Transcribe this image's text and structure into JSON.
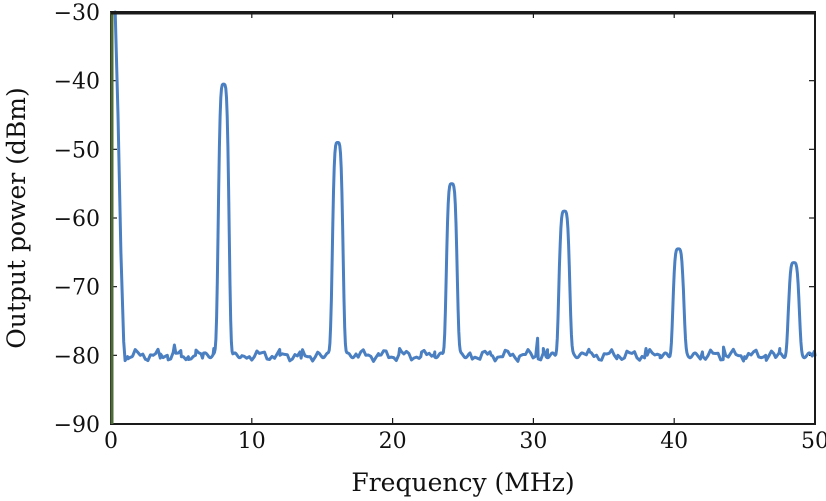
{
  "chart_data": {
    "type": "line",
    "title": "",
    "xlabel": "Frequency (MHz)",
    "ylabel": "Output power (dBm)",
    "xlim": [
      0,
      50
    ],
    "ylim": [
      -90,
      -30
    ],
    "x_ticks": [
      0,
      10,
      20,
      30,
      40,
      50
    ],
    "x_tick_labels": [
      "0",
      "10",
      "20",
      "30",
      "40",
      "50"
    ],
    "y_ticks": [
      -90,
      -80,
      -70,
      -60,
      -50,
      -40,
      -30
    ],
    "y_tick_labels": [
      "−90",
      "−80",
      "−70",
      "−60",
      "−50",
      "−40",
      "−30"
    ],
    "grid": false,
    "noise_floor": -80,
    "series": [
      {
        "color": "#4a7fc1",
        "peaks": [
          {
            "x": 8.0,
            "y": -40.5
          },
          {
            "x": 16.1,
            "y": -49
          },
          {
            "x": 24.2,
            "y": -55
          },
          {
            "x": 32.2,
            "y": -59
          },
          {
            "x": 40.3,
            "y": -64.5
          },
          {
            "x": 48.5,
            "y": -66.5
          }
        ],
        "x": [
          0.3,
          0.5,
          0.7,
          0.9,
          1.2,
          1.5,
          2.0,
          2.5,
          3.0,
          3.5,
          4.0,
          4.5,
          5.0,
          5.5,
          6.0,
          6.5,
          7.0,
          7.3,
          12.0,
          13.5,
          15.0,
          19.0,
          20.5,
          22.0,
          23.0,
          27.0,
          29.0,
          30.3,
          30.7,
          31.0,
          34.0,
          36.0,
          38.0,
          39.0,
          42.0,
          43.5,
          45.0,
          46.5,
          47.5,
          50.0
        ],
        "y": [
          -30,
          -45,
          -65,
          -78,
          -80.5,
          -80.2,
          -79.8,
          -80.6,
          -80.0,
          -80.4,
          -80.0,
          -78.5,
          -80.2,
          -80.6,
          -80.0,
          -80.4,
          -80.3,
          -79.0,
          -80.0,
          -80.4,
          -80.2,
          -80.0,
          -79.0,
          -80.2,
          -79.5,
          -80.0,
          -80.2,
          -77.5,
          -79.0,
          -79.2,
          -79.5,
          -80.0,
          -79.0,
          -80.0,
          -79.5,
          -78.8,
          -80.2,
          -80.0,
          -79.0,
          -80.0
        ]
      }
    ]
  }
}
